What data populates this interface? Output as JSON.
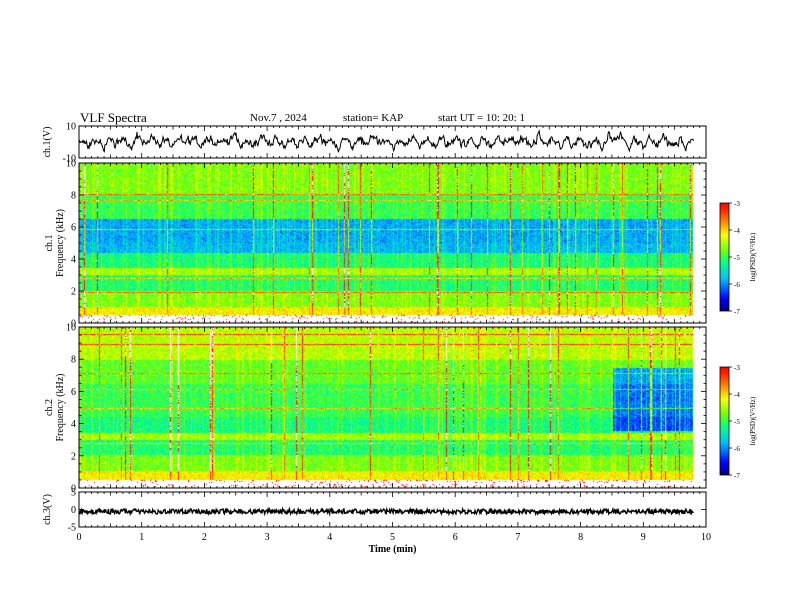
{
  "header": {
    "title": "VLF Spectra",
    "date": "Nov.7 , 2024",
    "station": "station= KAP",
    "start": "start UT = 10: 20: 1"
  },
  "chart_data": [
    {
      "type": "line",
      "name": "ch1-waveform",
      "ylabel": "ch.1(V)",
      "ylim": [
        -10,
        10
      ],
      "yticks": [
        "10",
        "-10"
      ],
      "xlim": [
        0,
        10
      ]
    },
    {
      "type": "heatmap",
      "name": "ch1-spectrogram",
      "ylabel": "ch.1\nFrequency (kHz)",
      "ylabel_lines": [
        "ch.1",
        "Frequency (kHz)"
      ],
      "ylim": [
        0,
        10
      ],
      "yticks": [
        "0",
        "2",
        "4",
        "6",
        "8",
        "10"
      ],
      "xlim": [
        0,
        10
      ],
      "data_end_min": 9.8,
      "colorbar": {
        "label": "log(PSD)(V²/Hz)",
        "range": [
          -7,
          -3
        ],
        "ticks": [
          "-3",
          "-4",
          "-5",
          "-6",
          "-7"
        ]
      }
    },
    {
      "type": "heatmap",
      "name": "ch2-spectrogram",
      "ylabel": "ch.2\nFrequency (kHz)",
      "ylabel_lines": [
        "ch.2",
        "Frequency (kHz)"
      ],
      "ylim": [
        0,
        10
      ],
      "yticks": [
        "0",
        "2",
        "4",
        "6",
        "8",
        "10"
      ],
      "xlim": [
        0,
        10
      ],
      "data_end_min": 9.8,
      "colorbar": {
        "label": "log(PSD)(V²/Hz)",
        "range": [
          -7,
          -3
        ],
        "ticks": [
          "-3",
          "-4",
          "-5",
          "-6",
          "-7"
        ]
      }
    },
    {
      "type": "line",
      "name": "ch3-waveform",
      "ylabel": "ch.3(V)",
      "ylim": [
        -5,
        5
      ],
      "yticks": [
        "5",
        "0",
        "-5"
      ],
      "xlim": [
        0,
        10
      ]
    }
  ],
  "xaxis": {
    "label": "Time (min)",
    "ticks": [
      "0",
      "1",
      "2",
      "3",
      "4",
      "5",
      "6",
      "7",
      "8",
      "9",
      "10"
    ]
  },
  "colors": {
    "axis": "#000000",
    "trace": "#000000",
    "colormap": [
      "#00007f",
      "#0000ff",
      "#00bfff",
      "#00ff80",
      "#7fff00",
      "#ffff00",
      "#ff7f00",
      "#ff0000",
      "#ffffff"
    ]
  }
}
